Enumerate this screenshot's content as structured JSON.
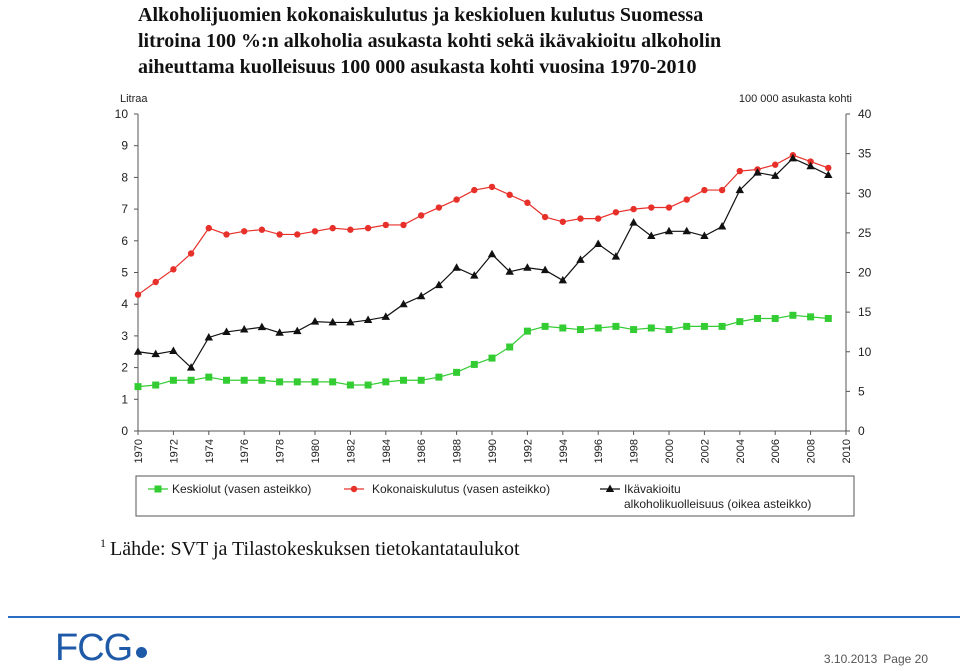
{
  "title_lines": [
    "Alkoholijuomien kokonaiskulutus ja keskioluen kulutus Suomessa",
    "litroina 100 %:n alkoholia asukasta kohti sekä ikävakioitu alkoholin",
    "aiheuttama kuolleisuus 100 000 asukasta kohti vuosina 1970-2010"
  ],
  "source": {
    "marker": "1",
    "text": "Lähde: SVT ja Tilastokeskuksen tietokantataulukot"
  },
  "footer": {
    "date": "3.10.2013",
    "page": "Page 20"
  },
  "logo": {
    "text": "FCG"
  },
  "colors": {
    "green": "#33cc33",
    "red": "#e8302a",
    "black": "#111111",
    "rule": "#2a6cc4",
    "logo": "#1f5aa8"
  },
  "chart_data": {
    "type": "line",
    "ylabel_left": "Litraa",
    "ylabel_right": "100 000 asukasta kohti",
    "ylim_left": [
      0,
      10
    ],
    "yticks_left": [
      0,
      1,
      2,
      3,
      4,
      5,
      6,
      7,
      8,
      9,
      10
    ],
    "ylim_right": [
      0,
      40
    ],
    "yticks_right": [
      0,
      5,
      10,
      15,
      20,
      25,
      30,
      35,
      40
    ],
    "xlim": [
      1970,
      2010
    ],
    "xticks": [
      1970,
      1972,
      1974,
      1976,
      1978,
      1980,
      1982,
      1984,
      1986,
      1988,
      1990,
      1992,
      1994,
      1996,
      1998,
      2000,
      2002,
      2004,
      2006,
      2008,
      2010
    ],
    "x": [
      1970,
      1971,
      1972,
      1973,
      1974,
      1975,
      1976,
      1977,
      1978,
      1979,
      1980,
      1981,
      1982,
      1983,
      1984,
      1985,
      1986,
      1987,
      1988,
      1989,
      1990,
      1991,
      1992,
      1993,
      1994,
      1995,
      1996,
      1997,
      1998,
      1999,
      2000,
      2001,
      2002,
      2003,
      2004,
      2005,
      2006,
      2007,
      2008,
      2009
    ],
    "legend_position": "bottom",
    "series": [
      {
        "name": "Keskiolut (vasen asteikko)",
        "axis": "left",
        "marker": "square",
        "color": "#33cc33",
        "values": [
          1.4,
          1.45,
          1.6,
          1.6,
          1.7,
          1.6,
          1.6,
          1.6,
          1.55,
          1.55,
          1.55,
          1.55,
          1.45,
          1.45,
          1.55,
          1.6,
          1.6,
          1.7,
          1.85,
          2.1,
          2.3,
          2.65,
          3.15,
          3.3,
          3.25,
          3.2,
          3.25,
          3.3,
          3.2,
          3.25,
          3.2,
          3.3,
          3.3,
          3.3,
          3.45,
          3.55,
          3.55,
          3.65,
          3.6,
          3.55
        ]
      },
      {
        "name": "Kokonaiskulutus (vasen asteikko)",
        "axis": "left",
        "marker": "circle",
        "color": "#e8302a",
        "values": [
          4.3,
          4.7,
          5.1,
          5.6,
          6.4,
          6.2,
          6.3,
          6.35,
          6.2,
          6.2,
          6.3,
          6.4,
          6.35,
          6.4,
          6.5,
          6.5,
          6.8,
          7.05,
          7.3,
          7.6,
          7.7,
          7.45,
          7.2,
          6.75,
          6.6,
          6.7,
          6.7,
          6.9,
          7.0,
          7.05,
          7.05,
          7.3,
          7.6,
          7.6,
          8.2,
          8.25,
          8.4,
          8.7,
          8.5,
          8.3
        ]
      },
      {
        "name": "Ikävakioitu alkoholikuolleisuus (oikea asteikko)",
        "axis": "right",
        "marker": "triangle",
        "color": "#111111",
        "values": [
          10.0,
          9.7,
          10.1,
          8.0,
          11.8,
          12.5,
          12.8,
          13.1,
          12.4,
          12.6,
          13.8,
          13.7,
          13.7,
          14.0,
          14.4,
          16.0,
          17.0,
          18.4,
          20.6,
          19.6,
          22.3,
          20.1,
          20.6,
          20.3,
          19.0,
          21.6,
          23.6,
          22.0,
          26.3,
          24.6,
          25.2,
          25.2,
          24.6,
          25.8,
          30.4,
          32.6,
          32.2,
          34.4,
          33.4,
          32.3
        ]
      }
    ]
  }
}
